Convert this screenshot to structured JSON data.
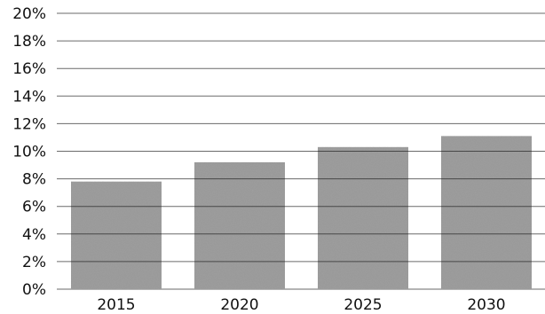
{
  "chart_data": {
    "type": "bar",
    "categories": [
      "2015",
      "2020",
      "2025",
      "2030"
    ],
    "values": [
      7.8,
      9.2,
      10.3,
      11.1
    ],
    "ylim": [
      0,
      20
    ],
    "yticks": [
      "0%",
      "2%",
      "4%",
      "6%",
      "8%",
      "10%",
      "12%",
      "14%",
      "16%",
      "18%",
      "20%"
    ],
    "grid": true,
    "legend": "none",
    "bar_style": "stippled gray",
    "colors": {
      "bar": "#9a9a9a",
      "grid": "#6a6a6a",
      "text": "#111111"
    }
  }
}
